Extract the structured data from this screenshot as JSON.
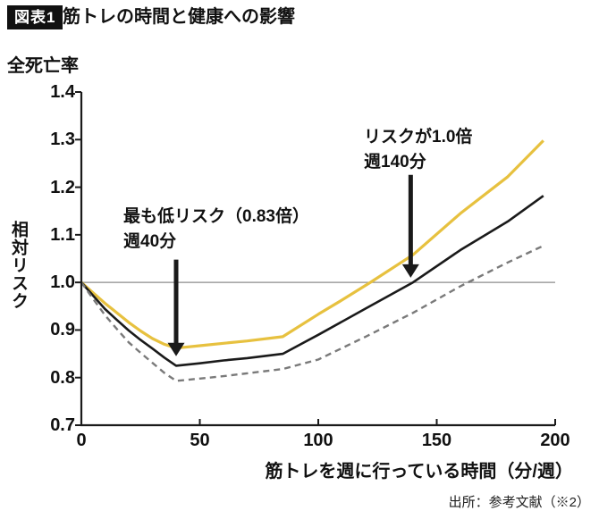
{
  "figure": {
    "badge": "図表1",
    "title": "筋トレの時間と健康への影響",
    "top_axis_title": "全死亡率",
    "y_axis_label": "相対リスク",
    "x_axis_label": "筋トレを週に行っている時間（分/週）",
    "source": "出所：参考文献（※2）"
  },
  "annotations": [
    {
      "lines": [
        "最も低リスク（0.83倍）",
        "週40分"
      ],
      "arrow_x_min": 40,
      "arrow_from_rr": 1.048,
      "arrow_to_rr": 0.845
    },
    {
      "lines": [
        "リスクが1.0倍",
        "週140分"
      ],
      "arrow_x_min": 139,
      "arrow_from_rr": 1.226,
      "arrow_to_rr": 1.01
    }
  ],
  "chart_data": {
    "type": "line",
    "title": "筋トレの時間と健康への影響",
    "xlabel": "筋トレを週に行っている時間（分/週）",
    "ylabel": "相対リスク（全死亡率）",
    "xlim": [
      0,
      200
    ],
    "ylim": [
      0.7,
      1.4
    ],
    "x_ticks": [
      0,
      50,
      100,
      150,
      200
    ],
    "y_ticks": [
      1.4,
      1.3,
      1.2,
      1.1,
      1.0,
      0.9,
      0.8,
      0.7
    ],
    "grid": false,
    "legend": "none",
    "reference_line_y": 1.0,
    "reference_line_color": "#8c8c8c",
    "axis_color": "#1a1a1a",
    "key_values": {
      "lowest_risk": {
        "minutes_per_week": 40,
        "relative_risk": 0.83
      },
      "risk_equals_one": {
        "minutes_per_week": 140,
        "relative_risk": 1.0
      }
    },
    "series": [
      {
        "name": "upper-confidence-bound",
        "color": "#e7c13f",
        "style": "solid",
        "width": 3.2,
        "points": [
          [
            0,
            1.0
          ],
          [
            5,
            0.978
          ],
          [
            10,
            0.956
          ],
          [
            15,
            0.936
          ],
          [
            20,
            0.916
          ],
          [
            25,
            0.898
          ],
          [
            30,
            0.882
          ],
          [
            35,
            0.87
          ],
          [
            40,
            0.862
          ],
          [
            50,
            0.867
          ],
          [
            60,
            0.872
          ],
          [
            70,
            0.877
          ],
          [
            85,
            0.886
          ],
          [
            100,
            0.933
          ],
          [
            110,
            0.963
          ],
          [
            122,
            1.0
          ],
          [
            140,
            1.058
          ],
          [
            160,
            1.145
          ],
          [
            180,
            1.222
          ],
          [
            195,
            1.298
          ]
        ]
      },
      {
        "name": "estimate",
        "color": "#1a1a1a",
        "style": "solid",
        "width": 2.6,
        "points": [
          [
            0,
            1.0
          ],
          [
            5,
            0.972
          ],
          [
            10,
            0.944
          ],
          [
            15,
            0.921
          ],
          [
            20,
            0.899
          ],
          [
            25,
            0.879
          ],
          [
            30,
            0.861
          ],
          [
            35,
            0.842
          ],
          [
            40,
            0.825
          ],
          [
            50,
            0.83
          ],
          [
            60,
            0.836
          ],
          [
            70,
            0.841
          ],
          [
            85,
            0.85
          ],
          [
            100,
            0.89
          ],
          [
            120,
            0.945
          ],
          [
            140,
            1.0
          ],
          [
            160,
            1.068
          ],
          [
            180,
            1.128
          ],
          [
            195,
            1.182
          ]
        ]
      },
      {
        "name": "lower-confidence-bound",
        "color": "#7a7a7a",
        "style": "dashed",
        "width": 2.4,
        "points": [
          [
            0,
            1.0
          ],
          [
            5,
            0.965
          ],
          [
            10,
            0.931
          ],
          [
            15,
            0.902
          ],
          [
            20,
            0.874
          ],
          [
            25,
            0.852
          ],
          [
            30,
            0.831
          ],
          [
            35,
            0.81
          ],
          [
            40,
            0.793
          ],
          [
            50,
            0.798
          ],
          [
            60,
            0.803
          ],
          [
            70,
            0.809
          ],
          [
            85,
            0.818
          ],
          [
            100,
            0.838
          ],
          [
            120,
            0.886
          ],
          [
            140,
            0.936
          ],
          [
            160,
            0.992
          ],
          [
            180,
            1.042
          ],
          [
            195,
            1.077
          ]
        ]
      }
    ]
  }
}
